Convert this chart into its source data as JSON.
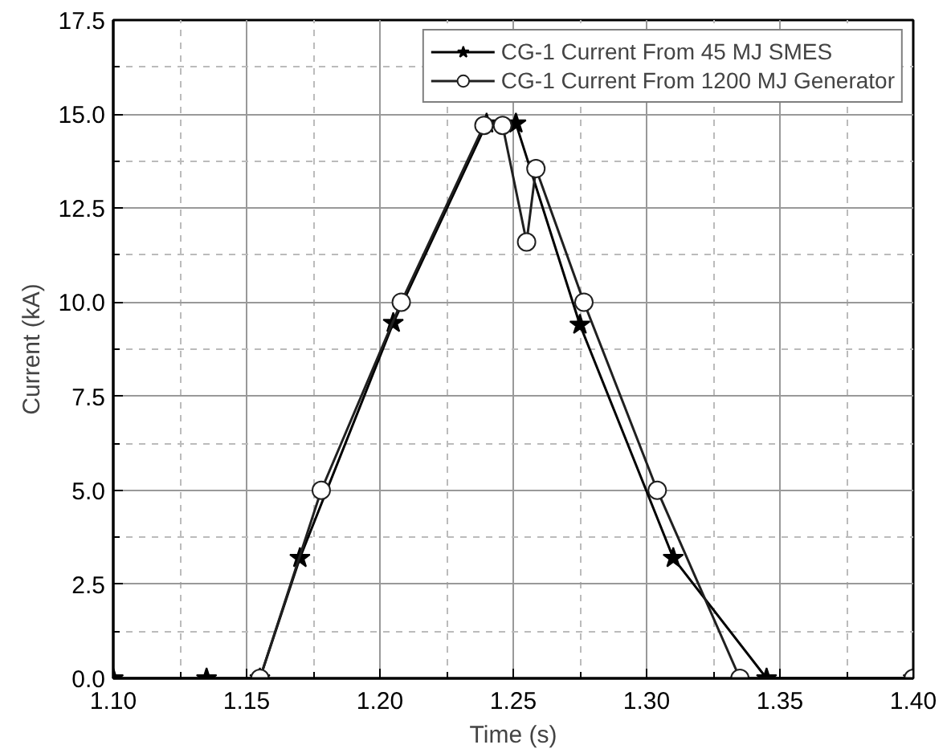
{
  "chart_data": {
    "type": "line",
    "xlabel": "Time (s)",
    "ylabel": "Current (kA)",
    "xlim": [
      1.1,
      1.4
    ],
    "ylim": [
      0,
      17.5
    ],
    "xticks": [
      {
        "value": 1.1,
        "label": "1.10"
      },
      1.15,
      {
        "value": 1.2,
        "label": "1.20"
      },
      1.25,
      {
        "value": 1.3,
        "label": "1.30"
      },
      1.35,
      {
        "value": 1.4,
        "label": "1.40"
      }
    ],
    "yticks": [
      {
        "value": 0,
        "label": "0.0"
      },
      2.5,
      {
        "value": 5,
        "label": "5.0"
      },
      7.5,
      {
        "value": 10,
        "label": "10.0"
      },
      12.5,
      {
        "value": 15,
        "label": "15.0"
      },
      17.5
    ],
    "grid": true,
    "legend": "top right",
    "line_style": "solid",
    "series": [
      {
        "name": "CG-1 Current From 45 MJ SMES",
        "color": "#000000",
        "marker": "star",
        "x": [
          1.1,
          1.135,
          1.155,
          1.17,
          1.205,
          1.24,
          1.251,
          1.275,
          1.31,
          1.345,
          1.4
        ],
        "values": [
          0,
          0,
          0,
          3.2,
          9.45,
          14.75,
          14.75,
          9.4,
          3.2,
          0,
          0
        ]
      },
      {
        "name": "CG-1 Current From 1200 MJ Generator",
        "color": "#202020",
        "marker": "circle",
        "x": [
          1.155,
          1.178,
          1.208,
          1.239,
          1.246,
          1.255,
          1.2585,
          1.2765,
          1.304,
          1.335,
          1.4
        ],
        "values": [
          0,
          5.0,
          10.0,
          14.7,
          14.7,
          11.6,
          13.55,
          10.0,
          5.0,
          0,
          0
        ]
      }
    ]
  }
}
